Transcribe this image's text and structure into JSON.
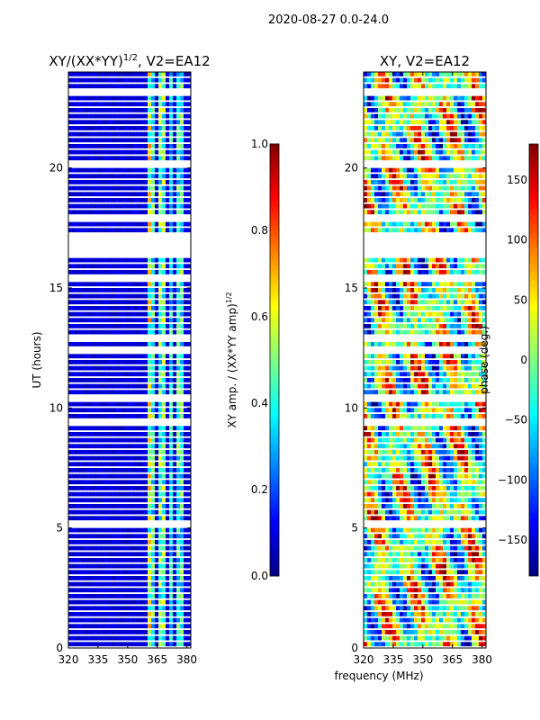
{
  "figure_title": "2020-08-27 0.0-24.0",
  "xlabel": "frequency (MHz)",
  "colormap": [
    "#000080",
    "#0000ff",
    "#0080ff",
    "#00ffff",
    "#80ff80",
    "#ffff00",
    "#ff8000",
    "#ff0000",
    "#800000"
  ],
  "chart_data": [
    {
      "type": "heatmap",
      "title_main": "XY/(XX*YY)",
      "title_sup": "1/2",
      "title_tail": ", V2=EA12",
      "ylabel": "UT (hours)",
      "xlim": [
        320,
        382
      ],
      "ylim": [
        0,
        24
      ],
      "xticks": [
        320,
        335,
        350,
        365,
        380
      ],
      "xtick_labels": [
        "320",
        "335",
        "350",
        "365",
        "380"
      ],
      "yticks": [
        0,
        5,
        10,
        15,
        20
      ],
      "ytick_labels": [
        "0",
        "5",
        "10",
        "15",
        "20"
      ],
      "gaps": [
        [
          16.2,
          17.1
        ],
        [
          10.2,
          10.5
        ],
        [
          9.3,
          9.6
        ],
        [
          13.4,
          13.6
        ],
        [
          19.4,
          19.6
        ],
        [
          17.7,
          17.9
        ],
        [
          15.2,
          15.3
        ]
      ],
      "bright_bands": [
        [
          359.5,
          361.5,
          0.55
        ],
        [
          362,
          364,
          0.4
        ],
        [
          366,
          369,
          0.45
        ],
        [
          371,
          373.5,
          0.35
        ],
        [
          375,
          377.5,
          0.4
        ]
      ],
      "colorbar": {
        "label_main": "XY amp. / (XX*YY amp)",
        "label_sup": "1/2",
        "range": [
          0.0,
          1.0
        ],
        "ticks": [
          0.0,
          0.2,
          0.4,
          0.6,
          0.8,
          1.0
        ],
        "tick_labels": [
          "0.0",
          "0.2",
          "0.4",
          "0.6",
          "0.8",
          "1.0"
        ]
      }
    },
    {
      "type": "heatmap",
      "title_main": "XY, V2=EA12",
      "xlim": [
        320,
        382
      ],
      "ylim": [
        0,
        24
      ],
      "xticks": [
        320,
        335,
        350,
        365,
        380
      ],
      "xtick_labels": [
        "320",
        "335",
        "350",
        "365",
        "380"
      ],
      "yticks": [
        0,
        5,
        10,
        15,
        20
      ],
      "ytick_labels": [
        "0",
        "5",
        "10",
        "15",
        "20"
      ],
      "gaps": [
        [
          16.2,
          17.1
        ],
        [
          10.2,
          10.5
        ],
        [
          9.3,
          9.6
        ],
        [
          13.4,
          13.6
        ],
        [
          19.4,
          19.6
        ],
        [
          17.7,
          17.9
        ],
        [
          15.2,
          15.3
        ]
      ],
      "colorbar": {
        "label": "phase (deg.)",
        "range": [
          -180,
          180
        ],
        "ticks": [
          -150,
          -100,
          -50,
          0,
          50,
          100,
          150
        ],
        "tick_labels": [
          "−150",
          "−100",
          "−50",
          "0",
          "50",
          "100",
          "150"
        ]
      }
    }
  ]
}
